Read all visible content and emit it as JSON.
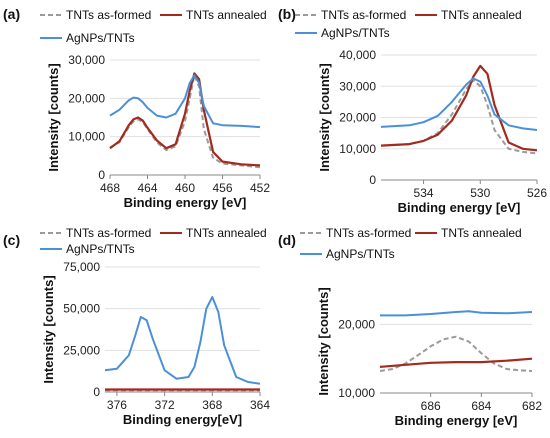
{
  "figure_type": "multi-panel XPS spectra",
  "legend_labels": [
    "TNTs as-formed",
    "TNTs annealed",
    "AgNPs/TNTs"
  ],
  "colors": {
    "as_formed": "#9a9a9a",
    "annealed": "#a02b1e",
    "agnps": "#4a90d9"
  },
  "chart_data": [
    {
      "panel": "(a)",
      "type": "line",
      "xlabel": "Binding energy [eV]",
      "ylabel": "Intensity [counts]",
      "x_reversed": true,
      "xlim": [
        468,
        452
      ],
      "ylim": [
        0,
        30000
      ],
      "xticks": [
        468,
        464,
        460,
        456,
        452
      ],
      "yticks": [
        0,
        10000,
        20000,
        30000
      ],
      "ytick_labels": [
        "0",
        "10,000",
        "20,000",
        "30,000"
      ],
      "legend_placement": "top",
      "series": [
        {
          "name": "TNTs as-formed",
          "style": "dashed",
          "x": [
            468,
            467,
            466,
            465.5,
            465,
            464.5,
            464,
            463,
            462,
            461,
            460,
            459.5,
            459,
            458.5,
            458,
            457,
            456,
            454,
            452
          ],
          "y": [
            7200,
            8500,
            12500,
            14000,
            14500,
            13800,
            12000,
            8500,
            6500,
            7500,
            14000,
            20000,
            26000,
            23000,
            12000,
            4500,
            3000,
            2500,
            2000
          ]
        },
        {
          "name": "TNTs annealed",
          "style": "solid",
          "x": [
            468,
            467,
            466,
            465.5,
            465,
            464.5,
            464,
            463,
            462,
            461,
            460,
            459.5,
            459,
            458.5,
            458,
            457,
            456,
            454,
            452
          ],
          "y": [
            7000,
            8800,
            13000,
            14500,
            15000,
            14200,
            12300,
            9000,
            7000,
            8000,
            16000,
            22000,
            26500,
            25000,
            17000,
            6000,
            3500,
            2800,
            2500
          ]
        },
        {
          "name": "AgNPs/TNTs",
          "style": "solid",
          "x": [
            468,
            467,
            466,
            465.5,
            465,
            464.5,
            464,
            463,
            462,
            461,
            460,
            459.5,
            459,
            458.5,
            458,
            457,
            456,
            454,
            452
          ],
          "y": [
            15500,
            17000,
            19500,
            20200,
            20000,
            19000,
            17500,
            15500,
            15000,
            16000,
            20000,
            24000,
            26000,
            24000,
            18000,
            13500,
            13000,
            12800,
            12500
          ]
        }
      ]
    },
    {
      "panel": "(b)",
      "type": "line",
      "xlabel": "Binding energy [eV]",
      "ylabel": "Intensity [counts]",
      "x_reversed": true,
      "xlim": [
        537,
        526
      ],
      "ylim": [
        0,
        40000
      ],
      "xticks": [
        534,
        530,
        526
      ],
      "yticks": [
        0,
        10000,
        20000,
        30000,
        40000
      ],
      "ytick_labels": [
        "0",
        "10,000",
        "20,000",
        "30,000",
        "40,000"
      ],
      "legend_placement": "top",
      "series": [
        {
          "name": "TNTs as-formed",
          "style": "dashed",
          "x": [
            537,
            535,
            534,
            533,
            532,
            531,
            530.5,
            530,
            529.5,
            529,
            528,
            527,
            526
          ],
          "y": [
            11000,
            11500,
            12500,
            15000,
            21000,
            29000,
            32000,
            30000,
            24000,
            16000,
            10000,
            9000,
            8500
          ]
        },
        {
          "name": "TNTs annealed",
          "style": "solid",
          "x": [
            537,
            535,
            534,
            533,
            532,
            531,
            530.5,
            530,
            529.5,
            529,
            528,
            527,
            526
          ],
          "y": [
            11000,
            11500,
            12500,
            14500,
            19000,
            27000,
            33000,
            36500,
            34000,
            24000,
            12000,
            10000,
            9500
          ]
        },
        {
          "name": "AgNPs/TNTs",
          "style": "solid",
          "x": [
            537,
            535,
            534,
            533,
            532,
            531,
            530.5,
            530,
            529.5,
            529,
            528,
            527,
            526
          ],
          "y": [
            17000,
            17500,
            18500,
            20500,
            25000,
            30500,
            32500,
            31500,
            27000,
            21000,
            17500,
            16500,
            16000
          ]
        }
      ]
    },
    {
      "panel": "(c)",
      "type": "line",
      "xlabel": "Binding energy[eV]",
      "ylabel": "Intensity [counts]",
      "x_reversed": true,
      "xlim": [
        377,
        364
      ],
      "ylim": [
        0,
        75000
      ],
      "xticks": [
        376,
        372,
        368,
        364
      ],
      "yticks": [
        0,
        25000,
        50000,
        75000
      ],
      "ytick_labels": [
        "0",
        "25,000",
        "50,000",
        "75,000"
      ],
      "legend_placement": "top",
      "series": [
        {
          "name": "TNTs as-formed",
          "style": "dashed",
          "x": [
            377,
            364
          ],
          "y": [
            1000,
            1000
          ]
        },
        {
          "name": "TNTs annealed",
          "style": "solid",
          "x": [
            377,
            364
          ],
          "y": [
            1500,
            1500
          ]
        },
        {
          "name": "AgNPs/TNTs",
          "style": "solid",
          "x": [
            377,
            376,
            375,
            374.5,
            374,
            373.5,
            373,
            372,
            371,
            370,
            369.5,
            369,
            368.5,
            368,
            367.5,
            367,
            366,
            365,
            364
          ],
          "y": [
            13000,
            14000,
            22000,
            33000,
            45000,
            43000,
            32000,
            13000,
            8000,
            9000,
            15000,
            30000,
            50000,
            57000,
            48000,
            28000,
            9000,
            6000,
            5000
          ]
        }
      ]
    },
    {
      "panel": "(d)",
      "type": "line",
      "xlabel": "Binding energy [eV]",
      "ylabel": "Intensity [counts]",
      "x_reversed": true,
      "xlim": [
        688,
        682
      ],
      "ylim": [
        10000,
        25000
      ],
      "xticks": [
        686,
        684,
        682
      ],
      "yticks": [
        10000,
        20000
      ],
      "ytick_labels": [
        "10,000",
        "20,000"
      ],
      "legend_placement": "top",
      "series": [
        {
          "name": "TNTs as-formed",
          "style": "dashed",
          "x": [
            688,
            687.5,
            687,
            686.5,
            686,
            685.5,
            685,
            684.5,
            684,
            683.5,
            683,
            682.5,
            682
          ],
          "y": [
            13200,
            13500,
            14300,
            15500,
            16800,
            17800,
            18200,
            17500,
            15800,
            14300,
            13500,
            13300,
            13200
          ]
        },
        {
          "name": "TNTs annealed",
          "style": "solid",
          "x": [
            688,
            687,
            686,
            685,
            684,
            683,
            682
          ],
          "y": [
            13800,
            14100,
            14400,
            14500,
            14500,
            14700,
            15000
          ]
        },
        {
          "name": "AgNPs/TNTs",
          "style": "solid",
          "x": [
            688,
            687,
            686,
            685,
            684.5,
            684,
            683,
            682
          ],
          "y": [
            21300,
            21300,
            21500,
            21800,
            21900,
            21700,
            21600,
            21800
          ]
        }
      ]
    }
  ]
}
